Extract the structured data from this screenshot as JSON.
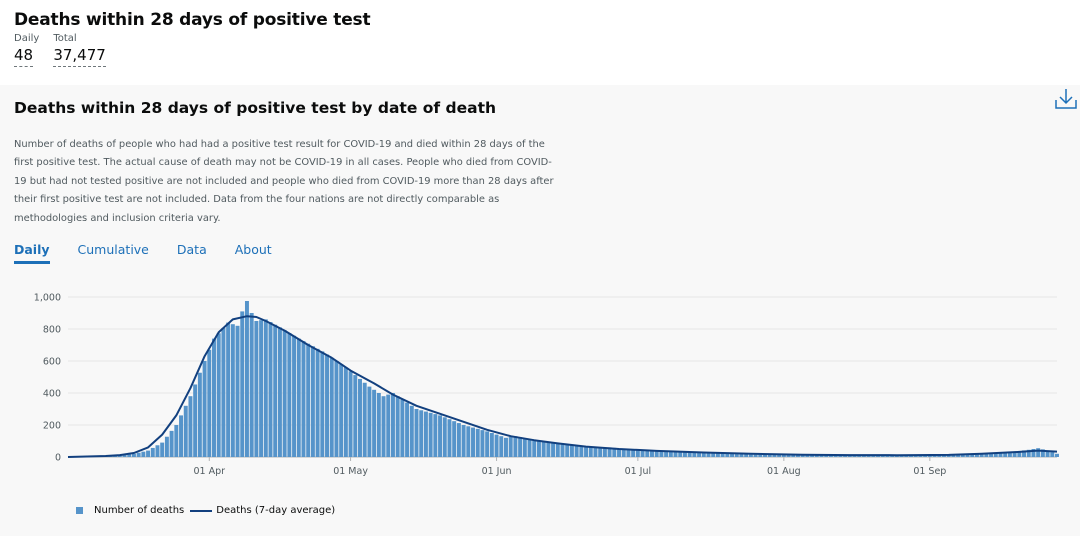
{
  "header": {
    "title": "Deaths within 28 days of positive test",
    "daily_label": "Daily",
    "daily_value": "48",
    "total_label": "Total",
    "total_value": "37,477"
  },
  "card": {
    "title": "Deaths within 28 days of positive test by date of death",
    "description": "Number of deaths of people who had had a positive test result for COVID-19 and died within 28 days of the first positive test. The actual cause of death may not be COVID-19 in all cases. People who died from COVID-19 but had not tested positive are not included and people who died from COVID-19 more than 28 days after their first positive test are not included. Data from the four nations are not directly comparable as methodologies and inclusion criteria vary.",
    "download_icon": "download-icon"
  },
  "tabs": [
    {
      "label": "Daily",
      "active": true
    },
    {
      "label": "Cumulative",
      "active": false
    },
    {
      "label": "Data",
      "active": false
    },
    {
      "label": "About",
      "active": false
    }
  ],
  "colors": {
    "bar": "#5694ca",
    "line": "#12407f",
    "grid": "#e6e6e6",
    "link": "#1d70b8"
  },
  "chart_data": {
    "type": "bar",
    "x_start": "2020-03-02",
    "x_end": "2020-09-28",
    "ylim": [
      0,
      1000
    ],
    "yticks": [
      0,
      200,
      400,
      600,
      800,
      1000
    ],
    "ytick_labels": [
      "0",
      "200",
      "400",
      "600",
      "800",
      "1,000"
    ],
    "xtick_dates": [
      "2020-04-01",
      "2020-05-01",
      "2020-06-01",
      "2020-07-01",
      "2020-08-01",
      "2020-09-01"
    ],
    "xtick_labels": [
      "01 Apr",
      "01 May",
      "01 Jun",
      "01 Jul",
      "01 Aug",
      "01 Sep"
    ],
    "grid": true,
    "legend_position": "bottom-left",
    "series": [
      {
        "name": "Number of deaths",
        "type": "bar",
        "points": [
          [
            "2020-03-02",
            0
          ],
          [
            "2020-03-06",
            2
          ],
          [
            "2020-03-10",
            5
          ],
          [
            "2020-03-13",
            10
          ],
          [
            "2020-03-16",
            20
          ],
          [
            "2020-03-19",
            40
          ],
          [
            "2020-03-22",
            90
          ],
          [
            "2020-03-25",
            200
          ],
          [
            "2020-03-28",
            380
          ],
          [
            "2020-03-31",
            600
          ],
          [
            "2020-04-02",
            740
          ],
          [
            "2020-04-05",
            840
          ],
          [
            "2020-04-07",
            820
          ],
          [
            "2020-04-08",
            910
          ],
          [
            "2020-04-09",
            975
          ],
          [
            "2020-04-10",
            900
          ],
          [
            "2020-04-11",
            850
          ],
          [
            "2020-04-13",
            860
          ],
          [
            "2020-04-16",
            810
          ],
          [
            "2020-04-20",
            740
          ],
          [
            "2020-04-25",
            660
          ],
          [
            "2020-04-30",
            560
          ],
          [
            "2020-05-05",
            440
          ],
          [
            "2020-05-08",
            380
          ],
          [
            "2020-05-10",
            400
          ],
          [
            "2020-05-15",
            300
          ],
          [
            "2020-05-20",
            260
          ],
          [
            "2020-05-25",
            200
          ],
          [
            "2020-05-30",
            160
          ],
          [
            "2020-06-03",
            120
          ],
          [
            "2020-06-05",
            130
          ],
          [
            "2020-06-10",
            100
          ],
          [
            "2020-06-15",
            80
          ],
          [
            "2020-06-20",
            60
          ],
          [
            "2020-06-25",
            60
          ],
          [
            "2020-06-30",
            45
          ],
          [
            "2020-07-05",
            35
          ],
          [
            "2020-07-15",
            25
          ],
          [
            "2020-07-25",
            15
          ],
          [
            "2020-08-05",
            12
          ],
          [
            "2020-08-15",
            10
          ],
          [
            "2020-08-25",
            10
          ],
          [
            "2020-09-05",
            12
          ],
          [
            "2020-09-12",
            20
          ],
          [
            "2020-09-18",
            30
          ],
          [
            "2020-09-22",
            45
          ],
          [
            "2020-09-24",
            55
          ],
          [
            "2020-09-26",
            40
          ],
          [
            "2020-09-28",
            20
          ]
        ]
      },
      {
        "name": "Deaths (7-day average)",
        "type": "line",
        "points": [
          [
            "2020-03-02",
            0
          ],
          [
            "2020-03-06",
            3
          ],
          [
            "2020-03-10",
            6
          ],
          [
            "2020-03-13",
            12
          ],
          [
            "2020-03-16",
            25
          ],
          [
            "2020-03-19",
            60
          ],
          [
            "2020-03-22",
            140
          ],
          [
            "2020-03-25",
            260
          ],
          [
            "2020-03-28",
            430
          ],
          [
            "2020-03-31",
            630
          ],
          [
            "2020-04-03",
            780
          ],
          [
            "2020-04-06",
            860
          ],
          [
            "2020-04-09",
            880
          ],
          [
            "2020-04-11",
            875
          ],
          [
            "2020-04-13",
            850
          ],
          [
            "2020-04-17",
            790
          ],
          [
            "2020-04-22",
            700
          ],
          [
            "2020-04-27",
            620
          ],
          [
            "2020-05-01",
            540
          ],
          [
            "2020-05-06",
            460
          ],
          [
            "2020-05-10",
            390
          ],
          [
            "2020-05-15",
            320
          ],
          [
            "2020-05-20",
            270
          ],
          [
            "2020-05-25",
            220
          ],
          [
            "2020-05-30",
            170
          ],
          [
            "2020-06-04",
            130
          ],
          [
            "2020-06-09",
            105
          ],
          [
            "2020-06-14",
            85
          ],
          [
            "2020-06-20",
            65
          ],
          [
            "2020-06-27",
            50
          ],
          [
            "2020-07-05",
            38
          ],
          [
            "2020-07-15",
            28
          ],
          [
            "2020-07-25",
            20
          ],
          [
            "2020-08-05",
            14
          ],
          [
            "2020-08-15",
            12
          ],
          [
            "2020-08-25",
            11
          ],
          [
            "2020-09-05",
            13
          ],
          [
            "2020-09-12",
            20
          ],
          [
            "2020-09-20",
            32
          ],
          [
            "2020-09-24",
            40
          ],
          [
            "2020-09-28",
            34
          ]
        ]
      }
    ]
  },
  "legend": {
    "bars_label": "Number of deaths",
    "line_label": "Deaths (7-day average)"
  }
}
